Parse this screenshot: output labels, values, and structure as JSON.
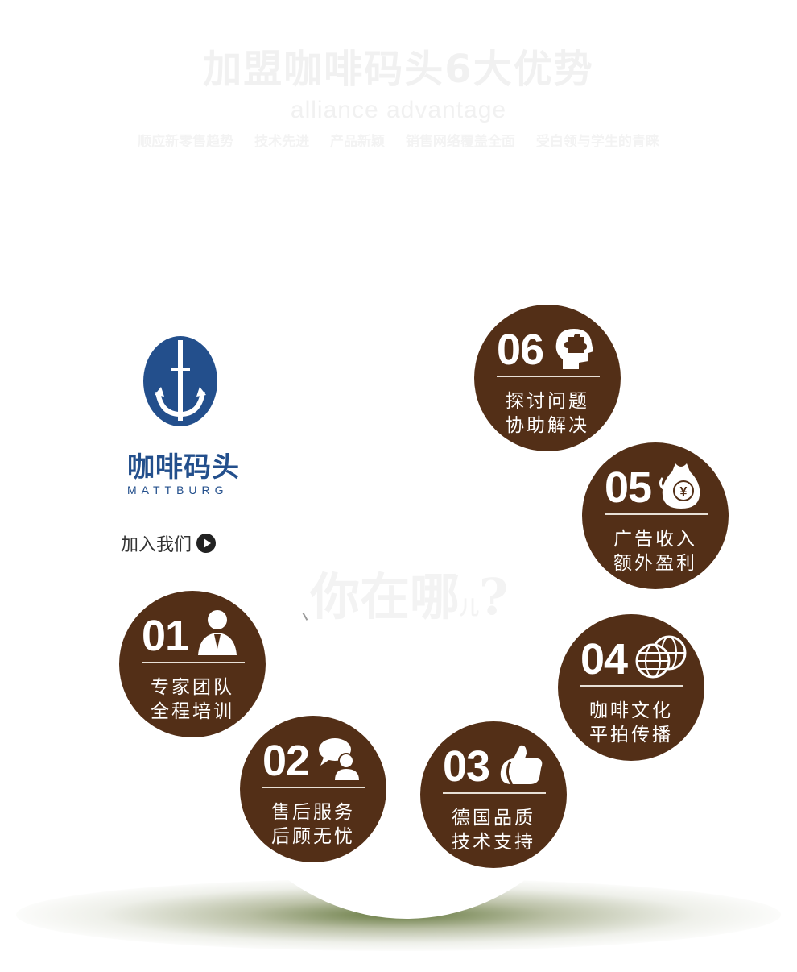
{
  "header": {
    "title": "加盟咖啡码头6大优势",
    "subtitle": "alliance advantage",
    "tagline": [
      "顺应新零售趋势",
      "技术先进",
      "产品新颖",
      "销售网络覆盖全面",
      "受白领与学生的青睐"
    ]
  },
  "logo": {
    "name_cn": "咖啡码头",
    "name_en": "MATTBURG"
  },
  "join": {
    "label": "加入我们"
  },
  "center": {
    "text": "你在哪",
    "small": "儿",
    "mark": "?"
  },
  "circles": [
    {
      "num": "01",
      "line1": "专家团队",
      "line2": "全程培训",
      "icon": "businessman-icon"
    },
    {
      "num": "02",
      "line1": "售后服务",
      "line2": "后顾无忧",
      "icon": "chat-bubbles-icon"
    },
    {
      "num": "03",
      "line1": "德国品质",
      "line2": "技术支持",
      "icon": "thumbs-up-icon"
    },
    {
      "num": "04",
      "line1": "咖啡文化",
      "line2": "平拍传播",
      "icon": "globe-icon"
    },
    {
      "num": "05",
      "line1": "广告收入",
      "line2": "额外盈利",
      "icon": "money-bag-icon"
    },
    {
      "num": "06",
      "line1": "探讨问题",
      "line2": "协助解决",
      "icon": "puzzle-head-icon"
    }
  ],
  "colors": {
    "circle": "#532f17",
    "logo": "#234f8c",
    "shadow": "#5f7337"
  }
}
